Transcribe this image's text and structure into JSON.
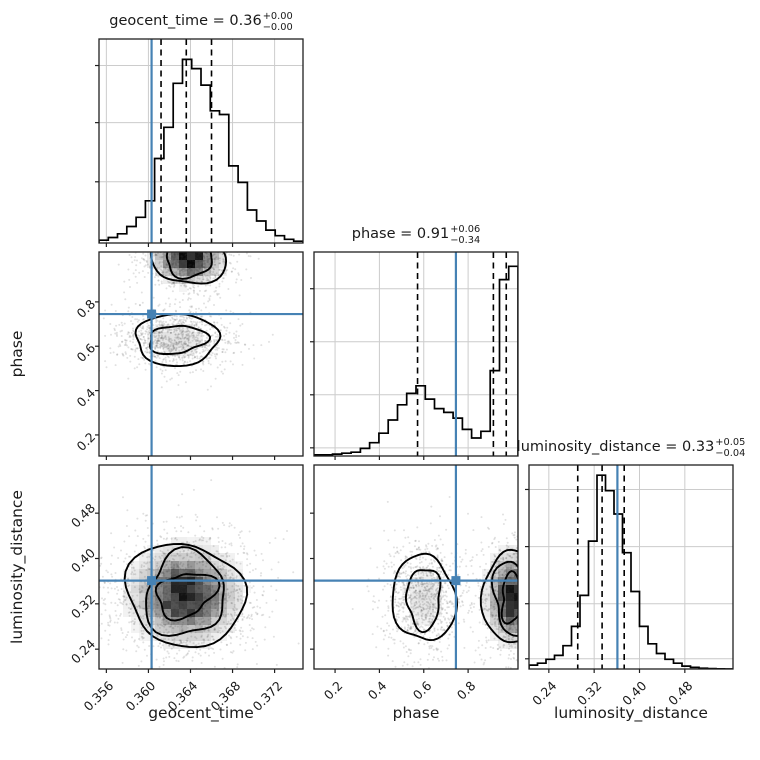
{
  "style": {
    "background": "#ffffff",
    "truth_color": "#4682b4",
    "grid_color": "#cccccc",
    "spine_color": "#202020",
    "hist_color": "#000000",
    "scatter_color": "#333333",
    "quantile_line_color": "#000000"
  },
  "layout": {
    "cols": [
      99,
      314,
      529
    ],
    "rows": [
      39,
      252,
      465
    ],
    "panel": 204
  },
  "titles": [
    {
      "text": "geocent_time = 0.36",
      "plus": "+0.00",
      "minus": "−0.00"
    },
    {
      "text": "phase = 0.91",
      "plus": "+0.06",
      "minus": "−0.34"
    },
    {
      "text": "luminosity_distance = 0.33",
      "plus": "+0.05",
      "minus": "−0.04"
    }
  ],
  "params": {
    "geocent_time": {
      "label": "geocent_time",
      "min": 0.3553,
      "max": 0.3747,
      "ticks": [
        0.356,
        0.36,
        0.364,
        0.368,
        0.372
      ],
      "tick_labels": [
        "0.356",
        "0.360",
        "0.364",
        "0.368",
        "0.372"
      ],
      "truth": 0.3603
    },
    "phase": {
      "label": "phase",
      "min": 0.105,
      "max": 1.025,
      "ticks": [
        0.2,
        0.4,
        0.6,
        0.8
      ],
      "tick_labels": [
        "0.2",
        "0.4",
        "0.6",
        "0.8"
      ],
      "truth": 0.745
    },
    "luminosity_distance": {
      "label": "luminosity_distance",
      "min": 0.205,
      "max": 0.565,
      "ticks": [
        0.24,
        0.32,
        0.4,
        0.48
      ],
      "tick_labels": [
        "0.24",
        "0.32",
        "0.40",
        "0.48"
      ],
      "truth": 0.361
    }
  },
  "chart_data": {
    "type": "scatter",
    "subtype": "corner-plot",
    "parameters": [
      "geocent_time",
      "phase",
      "luminosity_distance"
    ],
    "medians": {
      "geocent_time": 0.36,
      "phase": 0.91,
      "luminosity_distance": 0.33
    },
    "uncertainties": {
      "geocent_time": {
        "plus": 0.0,
        "minus": 0.0
      },
      "phase": {
        "plus": 0.06,
        "minus": 0.34
      },
      "luminosity_distance": {
        "plus": 0.05,
        "minus": 0.04
      }
    },
    "truths": {
      "geocent_time": 0.3603,
      "phase": 0.745,
      "luminosity_distance": 0.361
    },
    "panels": [
      {
        "kind": "hist1d",
        "row": 0,
        "col": 0,
        "param": "geocent_time",
        "scale": 0.9,
        "heights": [
          0.015,
          0.03,
          0.05,
          0.09,
          0.14,
          0.23,
          0.46,
          0.63,
          0.87,
          1.0,
          0.95,
          0.86,
          0.72,
          0.7,
          0.42,
          0.33,
          0.18,
          0.12,
          0.07,
          0.04,
          0.02,
          0.01
        ],
        "quantiles": [
          0.3612,
          0.3636,
          0.366
        ],
        "ygrid": [
          0.3,
          0.59,
          0.87
        ]
      },
      {
        "kind": "density2d",
        "row": 1,
        "col": 0,
        "xparam": "geocent_time",
        "yparam": "phase",
        "clusters": [
          {
            "cx": 0.3638,
            "cy": 1.0,
            "sx": 0.0016,
            "sy": 0.055,
            "intensity": 1.0,
            "levels": [
              2.2,
              1.5
            ],
            "seed": 31,
            "n": 1000
          },
          {
            "cx": 0.3627,
            "cy": 0.63,
            "sx": 0.0019,
            "sy": 0.05,
            "intensity": 0.13,
            "levels": [
              2.2,
              1.35
            ],
            "seed": 47,
            "n": 1000
          }
        ]
      },
      {
        "kind": "hist1d",
        "row": 1,
        "col": 1,
        "param": "phase",
        "scale": 0.93,
        "heights": [
          0.006,
          0.006,
          0.01,
          0.015,
          0.02,
          0.04,
          0.07,
          0.12,
          0.19,
          0.27,
          0.33,
          0.37,
          0.3,
          0.25,
          0.23,
          0.2,
          0.14,
          0.095,
          0.13,
          0.45,
          0.93,
          1.0
        ],
        "quantiles": [
          0.572,
          0.914,
          0.972
        ],
        "ygrid": [
          0.04,
          0.3,
          0.56,
          0.82
        ]
      },
      {
        "kind": "density2d",
        "row": 2,
        "col": 0,
        "xparam": "geocent_time",
        "yparam": "luminosity_distance",
        "clusters": [
          {
            "cx": 0.3635,
            "cy": 0.336,
            "sx": 0.0024,
            "sy": 0.04,
            "intensity": 0.95,
            "levels": [
              2.3,
              1.7,
              1.05
            ],
            "seed": 12,
            "n": 1600
          }
        ]
      },
      {
        "kind": "density2d",
        "row": 2,
        "col": 1,
        "xparam": "phase",
        "yparam": "luminosity_distance",
        "clusters": [
          {
            "cx": 0.6,
            "cy": 0.33,
            "sx": 0.062,
            "sy": 0.036,
            "intensity": 0.12,
            "levels": [
              2.2,
              1.35
            ],
            "seed": 9,
            "n": 950
          },
          {
            "cx": 1.0,
            "cy": 0.331,
            "sx": 0.055,
            "sy": 0.038,
            "intensity": 1.0,
            "levels": [
              2.3,
              1.6,
              1.0
            ],
            "seed": 22,
            "n": 1000
          }
        ]
      },
      {
        "kind": "hist1d",
        "row": 2,
        "col": 2,
        "param": "luminosity_distance",
        "scale": 0.95,
        "heights": [
          0.02,
          0.03,
          0.05,
          0.07,
          0.12,
          0.22,
          0.38,
          0.66,
          1.0,
          0.92,
          0.8,
          0.6,
          0.4,
          0.22,
          0.13,
          0.08,
          0.05,
          0.03,
          0.015,
          0.008,
          0.004,
          0.002,
          0.001,
          0
        ],
        "quantiles": [
          0.291,
          0.334,
          0.373
        ],
        "ygrid": [
          0.05,
          0.32,
          0.6,
          0.88
        ]
      }
    ]
  }
}
